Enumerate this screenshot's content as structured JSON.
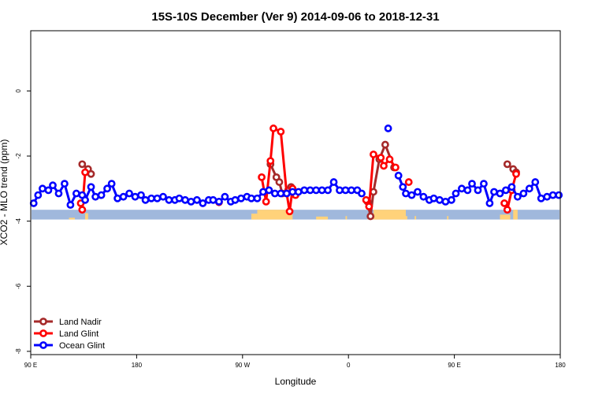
{
  "chart_data": {
    "type": "line",
    "title": "15S-10S December (Ver 9)   2014-09-06 to 2018-12-31",
    "xlabel": "Longitude",
    "ylabel": "XCO2 - MLO trend (ppm)",
    "xlim": [
      -90,
      270
    ],
    "ylim": [
      -8.1,
      1.85
    ],
    "xticks": [
      {
        "value": -90,
        "label": "90 E"
      },
      {
        "value": -18,
        "label": "180"
      },
      {
        "value": 54,
        "label": "90 W"
      },
      {
        "value": 126,
        "label": "0"
      },
      {
        "value": 198,
        "label": "90 E"
      },
      {
        "value": 270,
        "label": "180"
      }
    ],
    "yticks": [
      {
        "value": 0,
        "label": "0"
      },
      {
        "value": -2,
        "label": "-2"
      },
      {
        "value": -4,
        "label": "-4"
      },
      {
        "value": -6,
        "label": "-6"
      },
      {
        "value": -8,
        "label": "-8"
      }
    ],
    "grid": false,
    "legend_position": "bottom-left",
    "colors": {
      "land_nadir": "#a52a2a",
      "land_glint": "#ff0000",
      "ocean_glint": "#0000ff",
      "ocean_band": "#a0b8dc",
      "land_band": "#ffd27a"
    },
    "background_band": {
      "y_range": [
        -3.95,
        -3.65
      ],
      "land_segments": [
        [
          -64,
          -60,
          0.18
        ],
        [
          -53,
          -51,
          0.65
        ],
        [
          60,
          64,
          0.6
        ],
        [
          64,
          88,
          1.0
        ],
        [
          104,
          112,
          0.3
        ],
        [
          124,
          125,
          0.35
        ],
        [
          139,
          143,
          0.35
        ],
        [
          143,
          165,
          1.0
        ],
        [
          165,
          166,
          0.35
        ],
        [
          171,
          172,
          0.35
        ],
        [
          193,
          194,
          0.35
        ],
        [
          229,
          236,
          0.5
        ],
        [
          238,
          241,
          1.0
        ]
      ]
    },
    "series": [
      {
        "name": "Land Nadir",
        "key": "land_nadir",
        "segments": [
          [
            [
              -55,
              -2.25
            ],
            [
              -51,
              -2.4
            ],
            [
              -49,
              -2.55
            ]
          ],
          [
            [
              73,
              -2.25
            ],
            [
              77,
              -2.65
            ],
            [
              79,
              -2.8
            ],
            [
              81,
              -3.15
            ],
            [
              85,
              -3.05
            ],
            [
              87,
              -2.95
            ]
          ],
          [
            [
              139,
              -3.4
            ],
            [
              141,
              -3.85
            ],
            [
              143,
              -3.1
            ],
            [
              147,
              -2.1
            ],
            [
              151,
              -1.65
            ],
            [
              157,
              -2.35
            ]
          ],
          [
            [
              234,
              -2.25
            ],
            [
              238,
              -2.4
            ],
            [
              240,
              -2.5
            ]
          ]
        ]
      },
      {
        "name": "Land Glint",
        "key": "land_glint",
        "segments": [
          [
            [
              -56,
              -3.45
            ],
            [
              -55,
              -3.65
            ],
            [
              -53,
              -2.5
            ]
          ],
          [
            [
              38,
              -3.42
            ]
          ],
          [
            [
              67,
              -2.65
            ],
            [
              70,
              -3.4
            ],
            [
              73,
              -2.15
            ],
            [
              75,
              -1.15
            ],
            [
              80,
              -1.25
            ],
            [
              84,
              -3.15
            ],
            [
              86,
              -3.7
            ],
            [
              88,
              -3.0
            ],
            [
              90,
              -3.2
            ]
          ],
          [
            [
              138,
              -3.35
            ],
            [
              140,
              -3.55
            ],
            [
              143,
              -1.95
            ],
            [
              148,
              -2.05
            ],
            [
              150,
              -2.3
            ],
            [
              154,
              -2.1
            ],
            [
              158,
              -2.35
            ]
          ],
          [
            [
              167,
              -2.8
            ]
          ],
          [
            [
              232,
              -3.45
            ],
            [
              234,
              -3.65
            ],
            [
              237,
              -3.05
            ],
            [
              240,
              -2.55
            ]
          ]
        ]
      },
      {
        "name": "Ocean Glint",
        "key": "ocean_glint",
        "segments": [
          [
            [
              -88,
              -3.45
            ],
            [
              -85,
              -3.2
            ],
            [
              -82,
              -3.0
            ],
            [
              -78,
              -3.05
            ],
            [
              -75,
              -2.9
            ],
            [
              -71,
              -3.15
            ],
            [
              -67,
              -2.85
            ],
            [
              -63,
              -3.5
            ],
            [
              -59,
              -3.15
            ],
            [
              -55,
              -3.2
            ],
            [
              -53,
              -3.35
            ],
            [
              -49,
              -2.95
            ],
            [
              -46,
              -3.25
            ],
            [
              -42,
              -3.2
            ],
            [
              -38,
              -3.0
            ],
            [
              -35,
              -2.85
            ],
            [
              -31,
              -3.3
            ],
            [
              -27,
              -3.25
            ],
            [
              -23,
              -3.15
            ],
            [
              -19,
              -3.25
            ],
            [
              -15,
              -3.2
            ],
            [
              -12,
              -3.35
            ],
            [
              -8,
              -3.3
            ],
            [
              -4,
              -3.3
            ],
            [
              0,
              -3.25
            ],
            [
              4,
              -3.35
            ],
            [
              8,
              -3.35
            ],
            [
              11,
              -3.3
            ],
            [
              15,
              -3.35
            ],
            [
              19,
              -3.4
            ],
            [
              23,
              -3.35
            ],
            [
              27,
              -3.45
            ],
            [
              31,
              -3.35
            ],
            [
              34,
              -3.35
            ],
            [
              38,
              -3.4
            ],
            [
              42,
              -3.25
            ],
            [
              46,
              -3.4
            ],
            [
              49,
              -3.35
            ],
            [
              53,
              -3.3
            ],
            [
              57,
              -3.25
            ],
            [
              60,
              -3.3
            ],
            [
              64,
              -3.3
            ],
            [
              68,
              -3.1
            ],
            [
              72,
              -3.05
            ],
            [
              76,
              -3.15
            ],
            [
              80,
              -3.15
            ],
            [
              84,
              -3.15
            ],
            [
              88,
              -3.1
            ],
            [
              92,
              -3.1
            ],
            [
              96,
              -3.05
            ],
            [
              100,
              -3.05
            ],
            [
              104,
              -3.05
            ],
            [
              108,
              -3.05
            ],
            [
              112,
              -3.05
            ],
            [
              116,
              -2.8
            ],
            [
              120,
              -3.05
            ],
            [
              124,
              -3.05
            ],
            [
              128,
              -3.05
            ],
            [
              132,
              -3.05
            ],
            [
              135,
              -3.15
            ]
          ],
          [
            [
              153,
              -1.15
            ]
          ],
          [
            [
              160,
              -2.6
            ],
            [
              163,
              -2.95
            ],
            [
              165,
              -3.15
            ],
            [
              169,
              -3.2
            ],
            [
              173,
              -3.1
            ],
            [
              177,
              -3.25
            ],
            [
              181,
              -3.35
            ],
            [
              184,
              -3.3
            ],
            [
              188,
              -3.35
            ],
            [
              192,
              -3.4
            ],
            [
              196,
              -3.35
            ],
            [
              199,
              -3.15
            ],
            [
              203,
              -3.0
            ],
            [
              207,
              -3.05
            ],
            [
              210,
              -2.85
            ],
            [
              214,
              -3.05
            ],
            [
              218,
              -2.85
            ],
            [
              222,
              -3.45
            ],
            [
              225,
              -3.1
            ],
            [
              229,
              -3.15
            ],
            [
              233,
              -3.05
            ],
            [
              237,
              -2.95
            ],
            [
              241,
              -3.25
            ],
            [
              245,
              -3.15
            ],
            [
              249,
              -3.0
            ],
            [
              253,
              -2.8
            ],
            [
              257,
              -3.3
            ],
            [
              261,
              -3.25
            ],
            [
              265,
              -3.2
            ],
            [
              269,
              -3.2
            ]
          ]
        ]
      }
    ]
  }
}
